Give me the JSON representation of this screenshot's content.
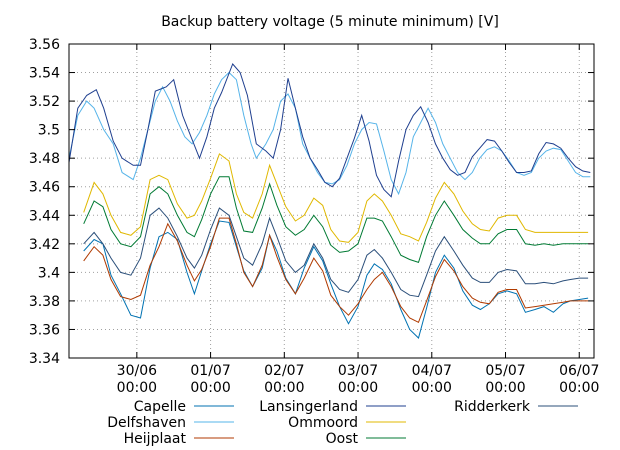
{
  "chart_data": {
    "type": "line",
    "title": "Backup battery voltage (5 minute minimum) [V]",
    "xlabel": "",
    "ylabel": "",
    "ylim": [
      3.34,
      3.56
    ],
    "yticks": [
      3.34,
      3.36,
      3.38,
      3.4,
      3.42,
      3.44,
      3.46,
      3.48,
      3.5,
      3.52,
      3.54,
      3.56
    ],
    "ytick_labels": [
      "3.34",
      "3.36",
      "3.38",
      "3.4",
      "3.42",
      "3.44",
      "3.46",
      "3.48",
      "3.5",
      "3.52",
      "3.54",
      "3.56"
    ],
    "xlim": [
      -0.92,
      6.2
    ],
    "xticks": [
      0,
      1,
      2,
      3,
      4,
      5,
      6
    ],
    "xtick_labels": [
      [
        "30/06",
        "00:00"
      ],
      [
        "01/07",
        "00:00"
      ],
      [
        "02/07",
        "00:00"
      ],
      [
        "03/07",
        "00:00"
      ],
      [
        "04/07",
        "00:00"
      ],
      [
        "05/07",
        "00:00"
      ],
      [
        "06/07",
        "00:00"
      ]
    ],
    "grid": true,
    "legend_position": "bottom",
    "series": [
      {
        "name": "Capelle",
        "color": "#0072b2",
        "x": [
          -0.72,
          -0.58,
          -0.46,
          -0.35,
          -0.22,
          -0.08,
          0.05,
          0.18,
          0.3,
          0.42,
          0.55,
          0.68,
          0.78,
          0.88,
          1.0,
          1.12,
          1.25,
          1.35,
          1.45,
          1.57,
          1.7,
          1.8,
          1.9,
          2.02,
          2.15,
          2.27,
          2.4,
          2.52,
          2.63,
          2.75,
          2.87,
          3.0,
          3.12,
          3.22,
          3.33,
          3.45,
          3.58,
          3.7,
          3.82,
          3.93,
          4.05,
          4.17,
          4.3,
          4.42,
          4.55,
          4.66,
          4.78,
          4.9,
          5.02,
          5.15,
          5.27,
          5.4,
          5.52,
          5.65,
          5.78,
          5.88,
          6.0,
          6.12
        ],
        "y": [
          3.415,
          3.423,
          3.42,
          3.398,
          3.385,
          3.37,
          3.368,
          3.403,
          3.425,
          3.428,
          3.423,
          3.4,
          3.385,
          3.401,
          3.42,
          3.436,
          3.435,
          3.418,
          3.401,
          3.39,
          3.403,
          3.426,
          3.415,
          3.396,
          3.385,
          3.403,
          3.418,
          3.408,
          3.392,
          3.376,
          3.364,
          3.376,
          3.398,
          3.406,
          3.402,
          3.392,
          3.374,
          3.36,
          3.354,
          3.375,
          3.4,
          3.412,
          3.403,
          3.387,
          3.377,
          3.374,
          3.378,
          3.385,
          3.387,
          3.385,
          3.372,
          3.374,
          3.376,
          3.372,
          3.378,
          3.38,
          3.381,
          3.382
        ]
      },
      {
        "name": "Delfshaven",
        "color": "#56b4e9",
        "x": [
          -0.92,
          -0.8,
          -0.68,
          -0.58,
          -0.45,
          -0.32,
          -0.2,
          -0.05,
          0.05,
          0.15,
          0.25,
          0.35,
          0.45,
          0.55,
          0.65,
          0.75,
          0.85,
          0.95,
          1.05,
          1.15,
          1.25,
          1.35,
          1.45,
          1.55,
          1.62,
          1.75,
          1.85,
          1.95,
          2.05,
          2.15,
          2.25,
          2.35,
          2.45,
          2.55,
          2.65,
          2.75,
          2.85,
          2.95,
          3.05,
          3.15,
          3.25,
          3.35,
          3.45,
          3.55,
          3.65,
          3.75,
          3.85,
          3.95,
          4.05,
          4.15,
          4.25,
          4.35,
          4.45,
          4.55,
          4.65,
          4.75,
          4.85,
          4.95,
          5.05,
          5.15,
          5.25,
          5.35,
          5.45,
          5.55,
          5.65,
          5.75,
          5.85,
          5.95,
          6.05,
          6.15
        ],
        "y": [
          3.48,
          3.51,
          3.52,
          3.515,
          3.5,
          3.49,
          3.47,
          3.465,
          3.48,
          3.5,
          3.52,
          3.53,
          3.52,
          3.506,
          3.495,
          3.49,
          3.498,
          3.51,
          3.525,
          3.535,
          3.54,
          3.535,
          3.51,
          3.49,
          3.48,
          3.49,
          3.5,
          3.52,
          3.525,
          3.515,
          3.49,
          3.48,
          3.47,
          3.463,
          3.462,
          3.465,
          3.475,
          3.49,
          3.5,
          3.505,
          3.504,
          3.485,
          3.465,
          3.455,
          3.47,
          3.495,
          3.505,
          3.515,
          3.505,
          3.49,
          3.48,
          3.47,
          3.465,
          3.47,
          3.48,
          3.486,
          3.488,
          3.485,
          3.478,
          3.47,
          3.468,
          3.47,
          3.48,
          3.485,
          3.487,
          3.486,
          3.478,
          3.47,
          3.467,
          3.467
        ]
      },
      {
        "name": "Heijplaat",
        "color": "#b03a00",
        "x": [
          -0.72,
          -0.58,
          -0.46,
          -0.35,
          -0.22,
          -0.08,
          0.05,
          0.18,
          0.3,
          0.42,
          0.55,
          0.68,
          0.78,
          0.88,
          1.0,
          1.12,
          1.25,
          1.35,
          1.45,
          1.57,
          1.7,
          1.8,
          1.9,
          2.02,
          2.15,
          2.27,
          2.4,
          2.52,
          2.63,
          2.75,
          2.87,
          3.0,
          3.12,
          3.22,
          3.33,
          3.45,
          3.58,
          3.7,
          3.82,
          3.93,
          4.05,
          4.17,
          4.3,
          4.42,
          4.55,
          4.66,
          4.78,
          4.9,
          5.02,
          5.15,
          5.27,
          5.4,
          5.52,
          5.65,
          5.78,
          5.88,
          6.0,
          6.12
        ],
        "y": [
          3.408,
          3.418,
          3.412,
          3.395,
          3.383,
          3.381,
          3.384,
          3.405,
          3.418,
          3.434,
          3.422,
          3.405,
          3.394,
          3.402,
          3.418,
          3.438,
          3.438,
          3.42,
          3.4,
          3.39,
          3.405,
          3.426,
          3.411,
          3.395,
          3.385,
          3.396,
          3.41,
          3.401,
          3.384,
          3.376,
          3.37,
          3.378,
          3.388,
          3.395,
          3.4,
          3.39,
          3.376,
          3.368,
          3.365,
          3.38,
          3.397,
          3.409,
          3.401,
          3.39,
          3.382,
          3.379,
          3.378,
          3.386,
          3.388,
          3.388,
          3.375,
          3.376,
          3.377,
          3.378,
          3.379,
          3.38,
          3.38,
          3.38
        ]
      },
      {
        "name": "Lansingerland",
        "color": "#1f3f8f",
        "x": [
          -0.92,
          -0.8,
          -0.68,
          -0.55,
          -0.45,
          -0.32,
          -0.2,
          -0.05,
          0.05,
          0.15,
          0.25,
          0.4,
          0.5,
          0.62,
          0.75,
          0.85,
          0.95,
          1.05,
          1.15,
          1.3,
          1.4,
          1.5,
          1.62,
          1.75,
          1.85,
          1.95,
          2.05,
          2.15,
          2.25,
          2.35,
          2.45,
          2.55,
          2.65,
          2.75,
          2.85,
          2.95,
          3.05,
          3.15,
          3.25,
          3.35,
          3.45,
          3.55,
          3.65,
          3.75,
          3.85,
          3.95,
          4.05,
          4.15,
          4.25,
          4.35,
          4.45,
          4.55,
          4.65,
          4.75,
          4.85,
          4.95,
          5.05,
          5.15,
          5.25,
          5.35,
          5.45,
          5.55,
          5.65,
          5.75,
          5.85,
          5.95,
          6.05,
          6.15
        ],
        "y": [
          3.477,
          3.515,
          3.524,
          3.528,
          3.515,
          3.492,
          3.48,
          3.475,
          3.475,
          3.5,
          3.527,
          3.53,
          3.535,
          3.51,
          3.493,
          3.48,
          3.495,
          3.515,
          3.526,
          3.546,
          3.54,
          3.524,
          3.49,
          3.485,
          3.48,
          3.5,
          3.536,
          3.515,
          3.495,
          3.48,
          3.472,
          3.463,
          3.46,
          3.466,
          3.48,
          3.494,
          3.51,
          3.492,
          3.468,
          3.458,
          3.453,
          3.478,
          3.5,
          3.51,
          3.516,
          3.505,
          3.49,
          3.48,
          3.472,
          3.468,
          3.47,
          3.481,
          3.487,
          3.493,
          3.492,
          3.485,
          3.477,
          3.47,
          3.47,
          3.471,
          3.483,
          3.491,
          3.49,
          3.487,
          3.48,
          3.474,
          3.471,
          3.47
        ]
      },
      {
        "name": "Ommoord",
        "color": "#e0b800",
        "x": [
          -0.72,
          -0.58,
          -0.46,
          -0.35,
          -0.22,
          -0.08,
          0.05,
          0.18,
          0.3,
          0.42,
          0.55,
          0.68,
          0.78,
          0.88,
          1.0,
          1.12,
          1.25,
          1.35,
          1.45,
          1.57,
          1.7,
          1.8,
          1.9,
          2.02,
          2.15,
          2.27,
          2.4,
          2.52,
          2.63,
          2.75,
          2.87,
          3.0,
          3.12,
          3.22,
          3.33,
          3.45,
          3.58,
          3.7,
          3.82,
          3.93,
          4.05,
          4.17,
          4.3,
          4.42,
          4.55,
          4.66,
          4.78,
          4.9,
          5.02,
          5.15,
          5.27,
          5.4,
          5.52,
          5.65,
          5.78,
          5.88,
          6.0,
          6.12
        ],
        "y": [
          3.442,
          3.463,
          3.455,
          3.44,
          3.428,
          3.426,
          3.432,
          3.465,
          3.468,
          3.465,
          3.448,
          3.438,
          3.44,
          3.45,
          3.466,
          3.483,
          3.478,
          3.455,
          3.442,
          3.438,
          3.455,
          3.475,
          3.462,
          3.446,
          3.436,
          3.44,
          3.452,
          3.447,
          3.43,
          3.422,
          3.421,
          3.428,
          3.45,
          3.455,
          3.45,
          3.44,
          3.427,
          3.425,
          3.422,
          3.435,
          3.452,
          3.463,
          3.455,
          3.443,
          3.434,
          3.43,
          3.429,
          3.438,
          3.44,
          3.44,
          3.43,
          3.428,
          3.428,
          3.428,
          3.428,
          3.428,
          3.428,
          3.428
        ]
      },
      {
        "name": "Oost",
        "color": "#007a33",
        "x": [
          -0.72,
          -0.58,
          -0.46,
          -0.35,
          -0.22,
          -0.08,
          0.05,
          0.18,
          0.3,
          0.42,
          0.55,
          0.68,
          0.78,
          0.88,
          1.0,
          1.12,
          1.25,
          1.35,
          1.45,
          1.57,
          1.7,
          1.8,
          1.9,
          2.02,
          2.15,
          2.27,
          2.4,
          2.52,
          2.63,
          2.75,
          2.87,
          3.0,
          3.12,
          3.22,
          3.33,
          3.45,
          3.58,
          3.7,
          3.82,
          3.93,
          4.05,
          4.17,
          4.3,
          4.42,
          4.55,
          4.66,
          4.78,
          4.9,
          5.02,
          5.15,
          5.27,
          5.4,
          5.52,
          5.65,
          5.78,
          5.88,
          6.0,
          6.12
        ],
        "y": [
          3.434,
          3.45,
          3.446,
          3.43,
          3.42,
          3.418,
          3.425,
          3.455,
          3.46,
          3.455,
          3.44,
          3.428,
          3.425,
          3.437,
          3.455,
          3.467,
          3.467,
          3.445,
          3.429,
          3.428,
          3.445,
          3.462,
          3.447,
          3.432,
          3.426,
          3.43,
          3.44,
          3.432,
          3.419,
          3.414,
          3.415,
          3.42,
          3.438,
          3.438,
          3.436,
          3.425,
          3.412,
          3.409,
          3.407,
          3.425,
          3.44,
          3.45,
          3.44,
          3.43,
          3.424,
          3.42,
          3.42,
          3.427,
          3.43,
          3.43,
          3.42,
          3.419,
          3.42,
          3.419,
          3.42,
          3.42,
          3.42,
          3.42
        ]
      },
      {
        "name": "Ridderkerk",
        "color": "#2b4f7a",
        "x": [
          -0.72,
          -0.58,
          -0.46,
          -0.35,
          -0.22,
          -0.08,
          0.05,
          0.18,
          0.3,
          0.42,
          0.55,
          0.68,
          0.78,
          0.88,
          1.0,
          1.12,
          1.25,
          1.35,
          1.45,
          1.57,
          1.7,
          1.8,
          1.9,
          2.02,
          2.15,
          2.27,
          2.4,
          2.52,
          2.63,
          2.75,
          2.87,
          3.0,
          3.12,
          3.22,
          3.33,
          3.45,
          3.58,
          3.7,
          3.82,
          3.93,
          4.05,
          4.17,
          4.3,
          4.42,
          4.55,
          4.66,
          4.78,
          4.9,
          5.02,
          5.15,
          5.27,
          5.4,
          5.52,
          5.65,
          5.78,
          5.88,
          6.0,
          6.12
        ],
        "y": [
          3.42,
          3.428,
          3.42,
          3.41,
          3.4,
          3.398,
          3.41,
          3.44,
          3.445,
          3.438,
          3.425,
          3.41,
          3.403,
          3.412,
          3.43,
          3.445,
          3.44,
          3.425,
          3.41,
          3.405,
          3.42,
          3.438,
          3.425,
          3.408,
          3.4,
          3.405,
          3.42,
          3.41,
          3.395,
          3.388,
          3.386,
          3.395,
          3.412,
          3.416,
          3.41,
          3.4,
          3.388,
          3.384,
          3.383,
          3.398,
          3.415,
          3.425,
          3.415,
          3.405,
          3.396,
          3.393,
          3.393,
          3.4,
          3.402,
          3.401,
          3.392,
          3.392,
          3.393,
          3.392,
          3.394,
          3.395,
          3.396,
          3.396
        ]
      }
    ]
  }
}
